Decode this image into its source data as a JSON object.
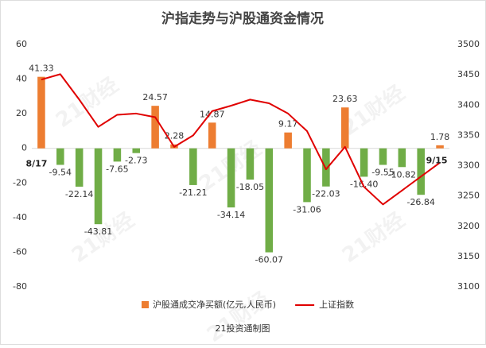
{
  "chart_data": {
    "type": "bar",
    "title": "沪指走势与沪股通资金情况",
    "footer": "21投资通制图",
    "watermark": "21财经",
    "categories": [
      "8/17",
      null,
      null,
      null,
      null,
      null,
      null,
      null,
      null,
      null,
      null,
      null,
      null,
      null,
      null,
      null,
      null,
      null,
      null,
      null,
      null,
      "9/15"
    ],
    "series": [
      {
        "name": "沪股通成交净买额(亿元,人民币)",
        "type": "bar",
        "color": "#ed7d31",
        "negative_color": "#70ad47",
        "values": [
          41.33,
          -9.54,
          -22.14,
          -43.81,
          -7.65,
          -2.73,
          24.57,
          2.28,
          -21.21,
          14.87,
          -34.14,
          -18.05,
          -60.07,
          9.17,
          -31.06,
          -22.03,
          23.63,
          -16.4,
          -9.55,
          -10.82,
          -26.84,
          1.78
        ],
        "value_labels": [
          "41.33",
          "-9.54",
          "-22.14",
          "-43.81",
          "-7.65",
          "-2.73",
          "24.57",
          "2.28",
          "-21.21",
          "14.87",
          "-34.14",
          "-18.05",
          "-60.07",
          "9.17",
          "-31.06",
          "-22.03",
          "23.63",
          "-16.40",
          "-9.55",
          "-10.82",
          "-26.84",
          "1.78"
        ]
      },
      {
        "name": "上证指数",
        "type": "line",
        "axis": "y2",
        "color": "#e00000",
        "values": [
          3442,
          3451,
          3409,
          3364,
          3384,
          3386,
          3380,
          3331,
          3350,
          3390,
          3399,
          3409,
          3403,
          3386,
          3357,
          3294,
          3331,
          3265,
          3236,
          3259,
          3282,
          3305
        ]
      }
    ],
    "ylim": [
      -80,
      60
    ],
    "yticks": [
      60,
      40,
      20,
      0,
      -20,
      -40,
      -60,
      -80
    ],
    "y2lim": [
      3100,
      3500
    ],
    "y2ticks": [
      3500,
      3450,
      3400,
      3350,
      3300,
      3250,
      3200,
      3150,
      3100
    ],
    "legend": "bottom"
  }
}
